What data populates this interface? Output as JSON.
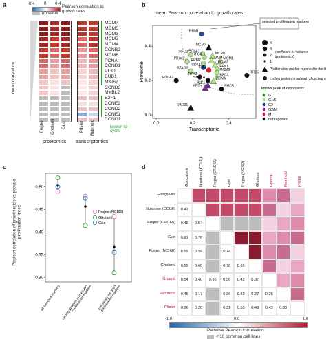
{
  "panel_a": {
    "letter": "a",
    "legend_title": "Pearson correlation to growth rates",
    "legend_ticks": [
      "-0.4",
      "0",
      "0.4"
    ],
    "legend_no_value": "no value",
    "axis_label": "mean correlation",
    "genes": [
      "MCM7",
      "MCM5",
      "MCM3",
      "MCM2",
      "MCM4",
      "CCNB2",
      "MCM6",
      "PCNA",
      "CCNB1",
      "PLK1",
      "BUB1",
      "MKI67",
      "CCND3",
      "MYBL2",
      "E2F1",
      "CCNE2",
      "CCND2",
      "CCNE1",
      "CCND1"
    ],
    "known_label": "known to cycle",
    "column_names": [
      "Frejno",
      "Gholami",
      "Guo",
      "Pfister",
      "Reinhold"
    ],
    "group_labels": [
      "proteomics",
      "transcriptomics"
    ],
    "colors": {
      "red": "#b2182b",
      "blue": "#2166ac",
      "gray": "#bdbdbd",
      "green": "#2ca02c"
    }
  },
  "panel_b": {
    "letter": "b",
    "title": "mean Pearson correlation to growth rates",
    "xlabel": "Transcriptome",
    "ylabel": "Proteome",
    "x_ticks": [
      "0.0",
      "0.2",
      "0.4"
    ],
    "y_ticks": [
      "0.0",
      "0.2",
      "0.4"
    ],
    "annotation": "selected proliferation markers",
    "size_legend_values": [
      "4",
      "3",
      "2",
      "1"
    ],
    "size_legend_title": "coefficient of variance (proteomics)",
    "shape_legend": [
      "Proliferation marker reported in the literature",
      "cycling protein or subunit of cycling complex"
    ],
    "phase_legend_title": "known peak of expression:",
    "phases": [
      {
        "label": "G1",
        "color": "#33a02c"
      },
      {
        "label": "G1/S",
        "color": "#b2df8a"
      },
      {
        "label": "G2",
        "color": "#1f4e9c"
      },
      {
        "label": "G2/M",
        "color": "#7b3294"
      },
      {
        "label": "M",
        "color": "#e31a1c"
      },
      {
        "label": "not reported",
        "color": "#111111"
      }
    ],
    "points": [
      {
        "name": "RRM1",
        "x": 0.25,
        "y": 0.47,
        "shape": "circle",
        "color": "#1f4e9c"
      },
      {
        "name": "MCM7",
        "x": 0.29,
        "y": 0.39,
        "shape": "triangle",
        "color": "#111111"
      },
      {
        "name": "RFC2",
        "x": 0.19,
        "y": 0.35,
        "shape": "circle",
        "color": "#b2df8a"
      },
      {
        "name": "POLA1",
        "x": 0.255,
        "y": 0.355,
        "shape": "circle",
        "color": "#b2df8a"
      },
      {
        "name": "MCM6",
        "x": 0.31,
        "y": 0.34,
        "shape": "triangle",
        "color": "#b2df8a"
      },
      {
        "name": "PRIM2",
        "x": 0.17,
        "y": 0.31,
        "shape": "circle",
        "color": "#b2df8a"
      },
      {
        "name": "RFC4",
        "x": 0.265,
        "y": 0.335,
        "shape": "circle",
        "color": "#b2df8a"
      },
      {
        "name": "MCM4",
        "x": 0.305,
        "y": 0.315,
        "shape": "triangle",
        "color": "#b2df8a"
      },
      {
        "name": "MCM3",
        "x": 0.355,
        "y": 0.31,
        "shape": "triangle",
        "color": "#b2df8a"
      },
      {
        "name": "RRM2",
        "x": 0.26,
        "y": 0.3,
        "shape": "circle",
        "color": "#b2df8a"
      },
      {
        "name": "MCM2",
        "x": 0.325,
        "y": 0.29,
        "shape": "triangle",
        "color": "#b2df8a"
      },
      {
        "name": "CDK1",
        "x": 0.26,
        "y": 0.275,
        "shape": "circle",
        "color": "#1f4e9c"
      },
      {
        "name": "RB1",
        "x": 0.29,
        "y": 0.26,
        "shape": "circle",
        "color": "#e31a1c"
      },
      {
        "name": "FEN1",
        "x": 0.335,
        "y": 0.265,
        "shape": "circle",
        "color": "#b2df8a"
      },
      {
        "name": "MCM8",
        "x": 0.335,
        "y": 0.245,
        "shape": "circle",
        "color": "#b2df8a"
      },
      {
        "name": "STAG2",
        "x": 0.19,
        "y": 0.255,
        "shape": "circle",
        "color": "#b2df8a"
      },
      {
        "name": "RPA3",
        "x": 0.24,
        "y": 0.22,
        "shape": "circle",
        "color": "#111111"
      },
      {
        "name": "RFC3",
        "x": 0.335,
        "y": 0.215,
        "shape": "circle",
        "color": "#b2df8a"
      },
      {
        "name": "RFC5",
        "x": 0.5,
        "y": 0.23,
        "shape": "circle",
        "color": "#111111"
      },
      {
        "name": "SMC1A",
        "x": 0.285,
        "y": 0.2,
        "shape": "circle",
        "color": "#111111"
      },
      {
        "name": "PCNA",
        "x": 0.315,
        "y": 0.195,
        "shape": "triangle",
        "color": "#b2df8a"
      },
      {
        "name": "POLA2",
        "x": 0.11,
        "y": 0.2,
        "shape": "circle",
        "color": "#111111"
      },
      {
        "name": "PLK1",
        "x": 0.285,
        "y": 0.17,
        "shape": "triangle",
        "color": "#7b3294"
      },
      {
        "name": "MKI67",
        "x": 0.27,
        "y": 0.155,
        "shape": "triangle",
        "color": "#7b3294"
      },
      {
        "name": "SMC3",
        "x": 0.36,
        "y": 0.15,
        "shape": "circle",
        "color": "#111111"
      },
      {
        "name": "RAD21",
        "x": 0.19,
        "y": 0.04,
        "shape": "triangle",
        "color": "#111111"
      }
    ]
  },
  "panel_c": {
    "letter": "c",
    "ylabel": "Pearson correlation of growth rates vs pseudo-proliferation index",
    "y_ticks": [
      "0.30",
      "0.35",
      "0.40",
      "0.45",
      "0.50"
    ],
    "categories": [
      "all selected markers",
      "cycling proteins and known proliferation markers",
      "previously reported proliferation markers"
    ],
    "legend": [
      {
        "label": "Frejno (NCI60)",
        "color": "#e377c2"
      },
      {
        "label": "Gholami",
        "color": "#2ca02c"
      },
      {
        "label": "Guo",
        "color": "#1f77b4"
      }
    ]
  },
  "chart_data": {
    "type": "scatter",
    "categories": [
      "all selected markers",
      "cycling proteins and known proliferation markers",
      "previously reported proliferation markers"
    ],
    "series": [
      {
        "name": "Frejno (NCI60)",
        "values": [
          0.49,
          0.48,
          0.435
        ]
      },
      {
        "name": "Gholami",
        "values": [
          0.52,
          0.415,
          0.31
        ]
      },
      {
        "name": "Guo",
        "values": [
          0.5,
          0.475,
          0.355
        ]
      }
    ],
    "means": [
      0.503,
      0.457,
      0.367
    ],
    "ylabel": "Pearson correlation of growth rates vs pseudo-proliferation index",
    "ylim": [
      0.29,
      0.53
    ]
  },
  "panel_d": {
    "letter": "d",
    "datasets": [
      "Gonçalves",
      "Nusinow (CCLE)",
      "Frejno (CRC65)",
      "Guo",
      "Frejno (NCI60)",
      "Gholami",
      "Ghandi",
      "Reinhold",
      "Pfister"
    ],
    "transcriptomic_names": [
      "Ghandi",
      "Reinhold",
      "Pfister"
    ],
    "values": [
      [
        null,
        null,
        null,
        null,
        null,
        null,
        null,
        null,
        null
      ],
      [
        "0.42",
        null,
        null,
        null,
        null,
        null,
        null,
        null,
        null
      ],
      [
        "0.48",
        "0.54",
        null,
        null,
        null,
        null,
        null,
        null,
        null
      ],
      [
        "0.81",
        "0.76",
        null,
        null,
        null,
        null,
        null,
        null,
        null
      ],
      [
        "0.59",
        "0.56",
        null,
        "0.74",
        null,
        null,
        null,
        null,
        null
      ],
      [
        "0.59",
        "0.60",
        null,
        "0.78",
        "0.65",
        null,
        null,
        null,
        null
      ],
      [
        "0.54",
        "0.40",
        "0.35",
        "0.56",
        "0.42",
        "0.37",
        null,
        null,
        null
      ],
      [
        "0.45",
        "0.17",
        null,
        "0.36",
        "0.33",
        "0.27",
        "0.26",
        null,
        null
      ],
      [
        "0.26",
        "0.20",
        null,
        "0.31",
        "0.55",
        "0.43",
        "0.43",
        "0.33",
        null
      ]
    ],
    "color_label": "Pairwise Pearson correlation",
    "color_ticks": [
      "-1.0",
      "0.0",
      "1.0"
    ],
    "gray_label": "< 10 common cell lines",
    "pink_label_color": "#c2185b"
  }
}
